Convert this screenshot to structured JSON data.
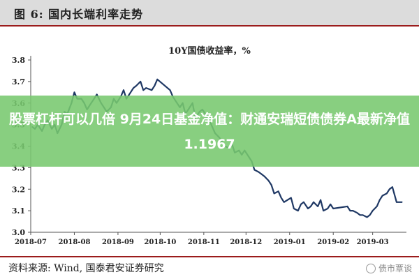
{
  "figure": {
    "title": "图 6:   国内长端利率走势",
    "source": "资料来源:   Wind,  国泰君安证券研究",
    "watermark": "债市覃谈"
  },
  "banner": {
    "text": "股票杠杆可以几倍 9月24日基金净值：财通安瑞短债债券A最新净值1.1967"
  },
  "chart_data": {
    "type": "line",
    "title": "10Y国债收益率，%",
    "ylim": [
      3.0,
      3.8
    ],
    "yticks": [
      3.0,
      3.1,
      3.2,
      3.3,
      3.4,
      3.5,
      3.6,
      3.7,
      3.8
    ],
    "xlim": [
      "2018-07-01",
      "2019-03-25"
    ],
    "xticks": [
      "2018-07",
      "2018-08",
      "2018-09",
      "2018-10",
      "2018-11",
      "2018-12",
      "2019-01",
      "2019-02",
      "2019-03"
    ],
    "grid": false,
    "color": "#1f3864",
    "series": [
      {
        "name": "",
        "x": [
          "2018-07-02",
          "2018-07-04",
          "2018-07-06",
          "2018-07-09",
          "2018-07-11",
          "2018-07-13",
          "2018-07-16",
          "2018-07-18",
          "2018-07-20",
          "2018-07-23",
          "2018-07-25",
          "2018-07-27",
          "2018-07-30",
          "2018-08-01",
          "2018-08-03",
          "2018-08-06",
          "2018-08-08",
          "2018-08-10",
          "2018-08-13",
          "2018-08-15",
          "2018-08-17",
          "2018-08-20",
          "2018-08-22",
          "2018-08-24",
          "2018-08-27",
          "2018-08-29",
          "2018-08-31",
          "2018-09-03",
          "2018-09-05",
          "2018-09-07",
          "2018-09-10",
          "2018-09-12",
          "2018-09-14",
          "2018-09-17",
          "2018-09-19",
          "2018-09-21",
          "2018-09-25",
          "2018-09-27",
          "2018-09-29",
          "2018-10-08",
          "2018-10-10",
          "2018-10-12",
          "2018-10-15",
          "2018-10-17",
          "2018-10-19",
          "2018-10-22",
          "2018-10-24",
          "2018-10-26",
          "2018-10-29",
          "2018-10-31",
          "2018-11-02",
          "2018-11-05",
          "2018-11-07",
          "2018-11-09",
          "2018-11-12",
          "2018-11-14",
          "2018-11-16",
          "2018-11-19",
          "2018-11-21",
          "2018-11-23",
          "2018-11-26",
          "2018-11-28",
          "2018-11-30",
          "2018-12-03",
          "2018-12-05",
          "2018-12-07",
          "2018-12-10",
          "2018-12-12",
          "2018-12-14",
          "2018-12-17",
          "2018-12-19",
          "2018-12-21",
          "2018-12-24",
          "2018-12-26",
          "2018-12-28",
          "2019-01-02",
          "2019-01-04",
          "2019-01-07",
          "2019-01-09",
          "2019-01-11",
          "2019-01-14",
          "2019-01-16",
          "2019-01-18",
          "2019-01-21",
          "2019-01-23",
          "2019-01-25",
          "2019-01-28",
          "2019-01-30",
          "2019-02-01",
          "2019-02-11",
          "2019-02-13",
          "2019-02-15",
          "2019-02-18",
          "2019-02-20",
          "2019-02-22",
          "2019-02-25",
          "2019-02-27",
          "2019-03-01",
          "2019-03-04",
          "2019-03-06",
          "2019-03-08",
          "2019-03-11",
          "2019-03-13",
          "2019-03-15",
          "2019-03-18",
          "2019-03-20",
          "2019-03-22"
        ],
        "values": [
          3.49,
          3.48,
          3.5,
          3.47,
          3.5,
          3.52,
          3.48,
          3.5,
          3.46,
          3.5,
          3.56,
          3.55,
          3.6,
          3.65,
          3.62,
          3.62,
          3.6,
          3.57,
          3.6,
          3.62,
          3.64,
          3.6,
          3.58,
          3.56,
          3.58,
          3.62,
          3.6,
          3.63,
          3.66,
          3.62,
          3.65,
          3.67,
          3.68,
          3.7,
          3.66,
          3.67,
          3.66,
          3.68,
          3.71,
          3.66,
          3.63,
          3.61,
          3.58,
          3.6,
          3.55,
          3.58,
          3.6,
          3.53,
          3.56,
          3.57,
          3.55,
          3.52,
          3.49,
          3.46,
          3.44,
          3.42,
          3.4,
          3.39,
          3.41,
          3.37,
          3.38,
          3.36,
          3.38,
          3.35,
          3.33,
          3.29,
          3.28,
          3.27,
          3.26,
          3.24,
          3.22,
          3.18,
          3.19,
          3.16,
          3.14,
          3.16,
          3.11,
          3.1,
          3.13,
          3.14,
          3.11,
          3.12,
          3.14,
          3.12,
          3.15,
          3.1,
          3.11,
          3.13,
          3.11,
          3.12,
          3.1,
          3.1,
          3.09,
          3.08,
          3.08,
          3.07,
          3.08,
          3.1,
          3.12,
          3.15,
          3.17,
          3.18,
          3.2,
          3.21,
          3.14,
          3.14,
          3.14
        ]
      }
    ]
  }
}
